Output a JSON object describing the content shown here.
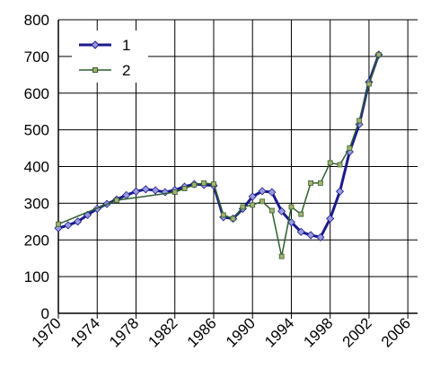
{
  "chart_data": {
    "type": "line",
    "xlim": [
      1970,
      2007
    ],
    "ylim": [
      0,
      800
    ],
    "xticks": [
      1970,
      1974,
      1978,
      1982,
      1986,
      1990,
      1994,
      1998,
      2002,
      2006
    ],
    "yticks": [
      0,
      100,
      200,
      300,
      400,
      500,
      600,
      700,
      800
    ],
    "grid": true,
    "legend": "upper-left",
    "series": [
      {
        "name": "1",
        "color": "#1a1a8c",
        "marker_color": "#9999dd",
        "x": [
          1970,
          1971,
          1972,
          1973,
          1974,
          1975,
          1976,
          1977,
          1978,
          1979,
          1980,
          1981,
          1982,
          1983,
          1984,
          1985,
          1986,
          1987,
          1988,
          1989,
          1990,
          1991,
          1992,
          1993,
          1994,
          1995,
          1996,
          1997,
          1998,
          1999,
          2000,
          2001,
          2002,
          2003
        ],
        "values": [
          232,
          240,
          250,
          268,
          285,
          298,
          310,
          322,
          332,
          338,
          335,
          330,
          336,
          345,
          352,
          350,
          348,
          262,
          258,
          285,
          318,
          333,
          330,
          278,
          248,
          222,
          213,
          207,
          258,
          332,
          440,
          515,
          630,
          705
        ]
      },
      {
        "name": "2",
        "color": "#2e5e2e",
        "marker_color": "#a8b070",
        "x": [
          1970,
          1976,
          1982,
          1983,
          1984,
          1985,
          1986,
          1987,
          1988,
          1989,
          1990,
          1991,
          1992,
          1993,
          1994,
          1995,
          1996,
          1997,
          1998,
          1999,
          2000,
          2001,
          2002,
          2003
        ],
        "values": [
          243,
          308,
          330,
          340,
          350,
          355,
          352,
          268,
          258,
          290,
          295,
          305,
          280,
          155,
          290,
          270,
          355,
          355,
          410,
          405,
          450,
          525,
          625,
          705
        ]
      }
    ]
  }
}
